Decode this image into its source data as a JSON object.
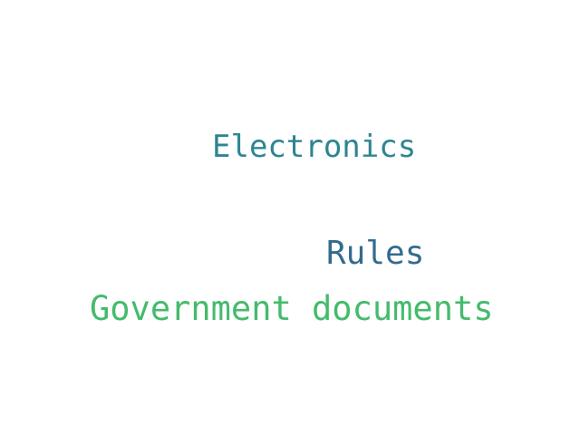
{
  "word_cloud": {
    "words": [
      {
        "text": "Electronics",
        "color": "#2e8591"
      },
      {
        "text": "Rules",
        "color": "#336b8e"
      },
      {
        "text": "Government documents",
        "color": "#44bb6c"
      }
    ]
  }
}
